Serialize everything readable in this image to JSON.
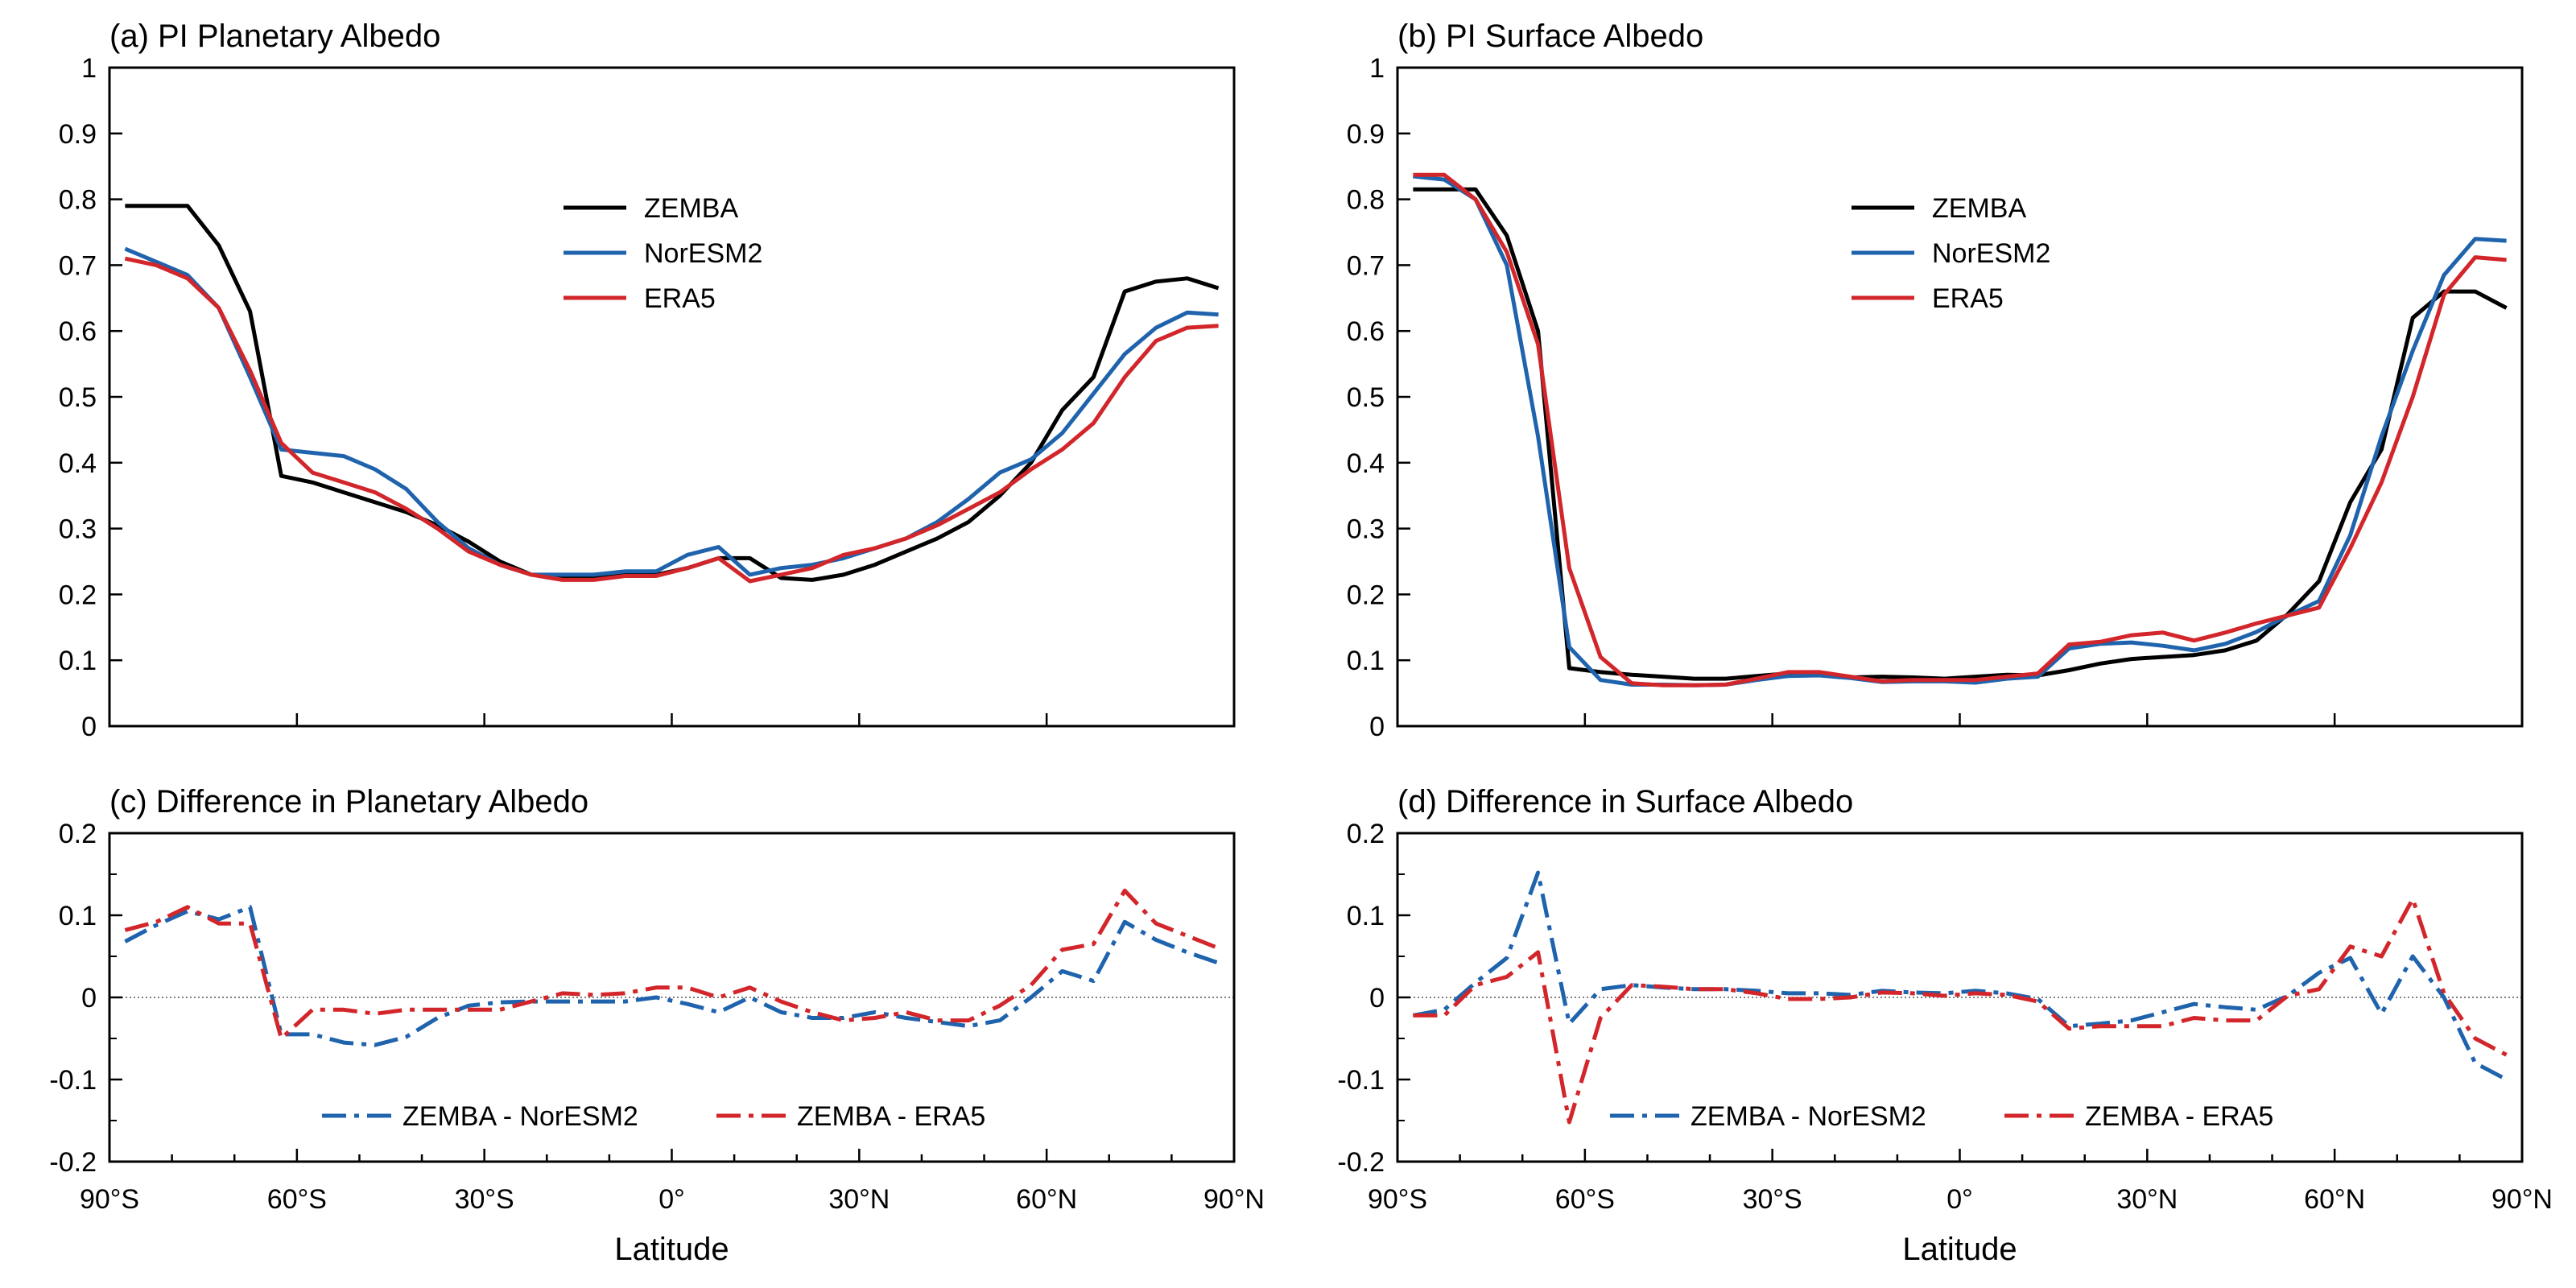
{
  "figure": {
    "x_axis_label": "Latitude",
    "x_ticks": [
      -90,
      -60,
      -30,
      0,
      30,
      60,
      90
    ],
    "x_tick_labels": [
      "90°S",
      "60°S",
      "30°S",
      "0°",
      "30°N",
      "60°N",
      "90°N"
    ],
    "colors": {
      "ZEMBA": "#000000",
      "NorESM2": "#1f63ad",
      "ERA5": "#d2262b",
      "zero_line": "#555555"
    }
  },
  "chart_data": [
    {
      "panel": "a",
      "type": "line",
      "title": "(a) PI Planetary Albedo",
      "xlabel": "",
      "ylabel": "",
      "xlim": [
        -90,
        90
      ],
      "ylim": [
        0,
        1
      ],
      "y_ticks": [
        0,
        0.1,
        0.2,
        0.3,
        0.4,
        0.5,
        0.6,
        0.7,
        0.8,
        0.9,
        1
      ],
      "y_tick_labels": [
        "0",
        "0.1",
        "0.2",
        "0.3",
        "0.4",
        "0.5",
        "0.6",
        "0.7",
        "0.8",
        "0.9",
        "1"
      ],
      "grid": false,
      "legend": "upper-center",
      "x": [
        -87.5,
        -82.5,
        -77.5,
        -72.5,
        -67.5,
        -62.5,
        -57.5,
        -52.5,
        -47.5,
        -42.5,
        -37.5,
        -32.5,
        -27.5,
        -22.5,
        -17.5,
        -12.5,
        -7.5,
        -2.5,
        2.5,
        7.5,
        12.5,
        17.5,
        22.5,
        27.5,
        32.5,
        37.5,
        42.5,
        47.5,
        52.5,
        57.5,
        62.5,
        67.5,
        72.5,
        77.5,
        82.5,
        87.5
      ],
      "series": [
        {
          "name": "ZEMBA",
          "style": "solid",
          "color": "#000000",
          "values": [
            0.79,
            0.79,
            0.79,
            0.73,
            0.63,
            0.38,
            0.37,
            0.355,
            0.34,
            0.325,
            0.305,
            0.28,
            0.25,
            0.23,
            0.225,
            0.225,
            0.23,
            0.23,
            0.24,
            0.255,
            0.255,
            0.225,
            0.222,
            0.23,
            0.245,
            0.265,
            0.285,
            0.31,
            0.35,
            0.4,
            0.48,
            0.53,
            0.66,
            0.675,
            0.68,
            0.665
          ]
        },
        {
          "name": "NorESM2",
          "style": "solid",
          "color": "#1f63ad",
          "values": [
            0.725,
            0.705,
            0.685,
            0.635,
            0.53,
            0.42,
            0.415,
            0.41,
            0.39,
            0.36,
            0.31,
            0.27,
            0.245,
            0.23,
            0.23,
            0.23,
            0.235,
            0.235,
            0.26,
            0.272,
            0.23,
            0.24,
            0.245,
            0.255,
            0.27,
            0.285,
            0.31,
            0.345,
            0.385,
            0.405,
            0.445,
            0.505,
            0.565,
            0.605,
            0.628,
            0.625
          ]
        },
        {
          "name": "ERA5",
          "style": "solid",
          "color": "#d2262b",
          "values": [
            0.71,
            0.7,
            0.68,
            0.635,
            0.54,
            0.43,
            0.385,
            0.37,
            0.355,
            0.33,
            0.3,
            0.265,
            0.245,
            0.23,
            0.222,
            0.222,
            0.228,
            0.228,
            0.24,
            0.255,
            0.22,
            0.23,
            0.24,
            0.26,
            0.27,
            0.285,
            0.305,
            0.33,
            0.355,
            0.39,
            0.42,
            0.46,
            0.53,
            0.585,
            0.605,
            0.608
          ]
        }
      ]
    },
    {
      "panel": "b",
      "type": "line",
      "title": "(b) PI Surface Albedo",
      "xlabel": "",
      "ylabel": "",
      "xlim": [
        -90,
        90
      ],
      "ylim": [
        0,
        1
      ],
      "y_ticks": [
        0,
        0.1,
        0.2,
        0.3,
        0.4,
        0.5,
        0.6,
        0.7,
        0.8,
        0.9,
        1
      ],
      "y_tick_labels": [
        "0",
        "0.1",
        "0.2",
        "0.3",
        "0.4",
        "0.5",
        "0.6",
        "0.7",
        "0.8",
        "0.9",
        "1"
      ],
      "grid": false,
      "legend": "upper-center",
      "x": [
        -87.5,
        -82.5,
        -77.5,
        -72.5,
        -67.5,
        -62.5,
        -57.5,
        -52.5,
        -47.5,
        -42.5,
        -37.5,
        -32.5,
        -27.5,
        -22.5,
        -17.5,
        -12.5,
        -7.5,
        -2.5,
        2.5,
        7.5,
        12.5,
        17.5,
        22.5,
        27.5,
        32.5,
        37.5,
        42.5,
        47.5,
        52.5,
        57.5,
        62.5,
        67.5,
        72.5,
        77.5,
        82.5,
        87.5
      ],
      "series": [
        {
          "name": "ZEMBA",
          "style": "solid",
          "color": "#000000",
          "values": [
            0.815,
            0.815,
            0.815,
            0.745,
            0.6,
            0.088,
            0.082,
            0.078,
            0.075,
            0.072,
            0.072,
            0.076,
            0.08,
            0.08,
            0.074,
            0.075,
            0.074,
            0.072,
            0.075,
            0.078,
            0.077,
            0.085,
            0.095,
            0.102,
            0.105,
            0.108,
            0.115,
            0.13,
            0.17,
            0.22,
            0.34,
            0.42,
            0.62,
            0.66,
            0.66,
            0.635
          ]
        },
        {
          "name": "NorESM2",
          "style": "solid",
          "color": "#1f63ad",
          "values": [
            0.835,
            0.83,
            0.8,
            0.7,
            0.44,
            0.12,
            0.07,
            0.063,
            0.063,
            0.062,
            0.063,
            0.07,
            0.076,
            0.077,
            0.073,
            0.067,
            0.068,
            0.068,
            0.066,
            0.072,
            0.075,
            0.118,
            0.125,
            0.127,
            0.122,
            0.115,
            0.125,
            0.143,
            0.168,
            0.19,
            0.29,
            0.44,
            0.57,
            0.685,
            0.74,
            0.737
          ]
        },
        {
          "name": "ERA5",
          "style": "solid",
          "color": "#d2262b",
          "values": [
            0.837,
            0.837,
            0.8,
            0.72,
            0.58,
            0.24,
            0.105,
            0.065,
            0.062,
            0.062,
            0.063,
            0.072,
            0.082,
            0.082,
            0.075,
            0.068,
            0.07,
            0.07,
            0.07,
            0.075,
            0.08,
            0.124,
            0.128,
            0.138,
            0.142,
            0.13,
            0.142,
            0.156,
            0.168,
            0.18,
            0.27,
            0.37,
            0.5,
            0.655,
            0.712,
            0.708
          ]
        }
      ]
    },
    {
      "panel": "c",
      "type": "line",
      "title": "(c) Difference in Planetary Albedo",
      "xlabel": "Latitude",
      "ylabel": "",
      "xlim": [
        -90,
        90
      ],
      "ylim": [
        -0.2,
        0.2
      ],
      "y_ticks": [
        -0.2,
        -0.1,
        0,
        0.1,
        0.2
      ],
      "y_tick_labels": [
        "-0.2",
        "-0.1",
        "0",
        "0.1",
        "0.2"
      ],
      "zero_line": true,
      "grid": false,
      "legend": "lower-center",
      "x": [
        -87.5,
        -82.5,
        -77.5,
        -72.5,
        -67.5,
        -62.5,
        -57.5,
        -52.5,
        -47.5,
        -42.5,
        -37.5,
        -32.5,
        -27.5,
        -22.5,
        -17.5,
        -12.5,
        -7.5,
        -2.5,
        2.5,
        7.5,
        12.5,
        17.5,
        22.5,
        27.5,
        32.5,
        37.5,
        42.5,
        47.5,
        52.5,
        57.5,
        62.5,
        67.5,
        72.5,
        77.5,
        82.5,
        87.5
      ],
      "series": [
        {
          "name": "ZEMBA - NorESM2",
          "style": "dashdot",
          "color": "#1f63ad",
          "values": [
            0.068,
            0.088,
            0.105,
            0.095,
            0.11,
            -0.045,
            -0.045,
            -0.055,
            -0.058,
            -0.048,
            -0.025,
            -0.01,
            -0.006,
            -0.005,
            -0.005,
            -0.005,
            -0.005,
            0.0,
            -0.008,
            -0.018,
            0.0,
            -0.018,
            -0.025,
            -0.025,
            -0.018,
            -0.025,
            -0.03,
            -0.035,
            -0.028,
            0.0,
            0.032,
            0.02,
            0.092,
            0.07,
            0.055,
            0.042
          ]
        },
        {
          "name": "ZEMBA - ERA5",
          "style": "dashdot",
          "color": "#d2262b",
          "values": [
            0.082,
            0.092,
            0.11,
            0.09,
            0.09,
            -0.05,
            -0.015,
            -0.015,
            -0.02,
            -0.015,
            -0.015,
            -0.015,
            -0.015,
            -0.005,
            0.005,
            0.003,
            0.005,
            0.012,
            0.012,
            0.0,
            0.012,
            -0.005,
            -0.018,
            -0.028,
            -0.025,
            -0.018,
            -0.028,
            -0.028,
            -0.01,
            0.015,
            0.058,
            0.065,
            0.13,
            0.09,
            0.075,
            0.06
          ]
        }
      ]
    },
    {
      "panel": "d",
      "type": "line",
      "title": "(d) Difference in Surface Albedo",
      "xlabel": "Latitude",
      "ylabel": "",
      "xlim": [
        -90,
        90
      ],
      "ylim": [
        -0.2,
        0.2
      ],
      "y_ticks": [
        -0.2,
        -0.1,
        0,
        0.1,
        0.2
      ],
      "y_tick_labels": [
        "-0.2",
        "-0.1",
        "0",
        "0.1",
        "0.2"
      ],
      "zero_line": true,
      "grid": false,
      "legend": "lower-center",
      "x": [
        -87.5,
        -82.5,
        -77.5,
        -72.5,
        -67.5,
        -62.5,
        -57.5,
        -52.5,
        -47.5,
        -42.5,
        -37.5,
        -32.5,
        -27.5,
        -22.5,
        -17.5,
        -12.5,
        -7.5,
        -2.5,
        2.5,
        7.5,
        12.5,
        17.5,
        22.5,
        27.5,
        32.5,
        37.5,
        42.5,
        47.5,
        52.5,
        57.5,
        62.5,
        67.5,
        72.5,
        77.5,
        82.5,
        87.5
      ],
      "series": [
        {
          "name": "ZEMBA - NorESM2",
          "style": "dashdot",
          "color": "#1f63ad",
          "values": [
            -0.022,
            -0.015,
            0.018,
            0.048,
            0.152,
            -0.032,
            0.01,
            0.015,
            0.012,
            0.01,
            0.01,
            0.008,
            0.005,
            0.005,
            0.003,
            0.008,
            0.006,
            0.005,
            0.008,
            0.005,
            -0.002,
            -0.035,
            -0.032,
            -0.028,
            -0.018,
            -0.008,
            -0.012,
            -0.015,
            0.002,
            0.03,
            0.048,
            -0.02,
            0.05,
            0.0,
            -0.08,
            -0.1
          ]
        },
        {
          "name": "ZEMBA - ERA5",
          "style": "dashdot",
          "color": "#d2262b",
          "values": [
            -0.022,
            -0.022,
            0.015,
            0.025,
            0.055,
            -0.152,
            -0.025,
            0.015,
            0.013,
            0.01,
            0.01,
            0.005,
            -0.002,
            -0.002,
            0.0,
            0.006,
            0.005,
            0.002,
            0.005,
            0.003,
            -0.005,
            -0.038,
            -0.035,
            -0.035,
            -0.035,
            -0.025,
            -0.028,
            -0.028,
            0.002,
            0.01,
            0.062,
            0.05,
            0.12,
            0.005,
            -0.05,
            -0.07
          ]
        }
      ]
    }
  ]
}
